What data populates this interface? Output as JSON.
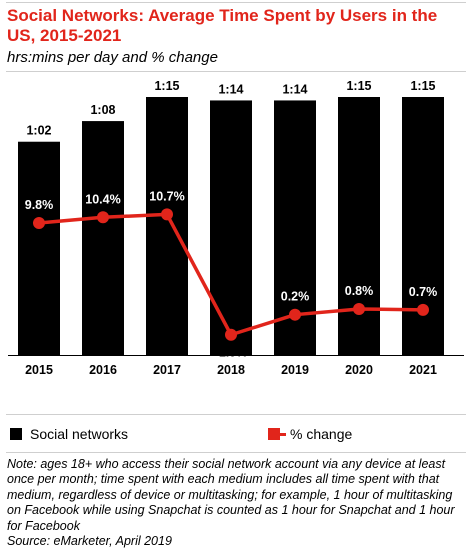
{
  "title": "Social Networks: Average Time Spent by Users in the US, 2015-2021",
  "subtitle": "hrs:mins per day and % change",
  "legend": {
    "bars_label": "Social networks",
    "line_label": "% change"
  },
  "note": "Note: ages 18+ who access their social network account via any device at least once per month; time spent with each medium includes all time spent with that medium, regardless of device or multitasking; for example, 1 hour of multitasking on Facebook while using Snapchat is counted as 1 hour for Snapchat and 1 hour for Facebook",
  "source": "Source: eMarketer, April 2019",
  "colors": {
    "title": "#e1251b",
    "bars": "#000000",
    "line": "#e1251b"
  },
  "chart_data": {
    "type": "bar",
    "categories": [
      "2015",
      "2016",
      "2017",
      "2018",
      "2019",
      "2020",
      "2021"
    ],
    "series": [
      {
        "name": "Social networks",
        "type": "bar",
        "values_minutes": [
          62,
          68,
          75,
          74,
          74,
          75,
          75
        ],
        "labels": [
          "1:02",
          "1:08",
          "1:15",
          "1:14",
          "1:14",
          "1:15",
          "1:15"
        ]
      },
      {
        "name": "% change",
        "type": "line",
        "values": [
          9.8,
          10.4,
          10.7,
          -1.9,
          0.2,
          0.8,
          0.7
        ],
        "labels": [
          "9.8%",
          "10.4%",
          "10.7%",
          "-1.9%",
          "0.2%",
          "0.8%",
          "0.7%"
        ]
      }
    ],
    "legend_position": "bottom",
    "grid": false
  }
}
